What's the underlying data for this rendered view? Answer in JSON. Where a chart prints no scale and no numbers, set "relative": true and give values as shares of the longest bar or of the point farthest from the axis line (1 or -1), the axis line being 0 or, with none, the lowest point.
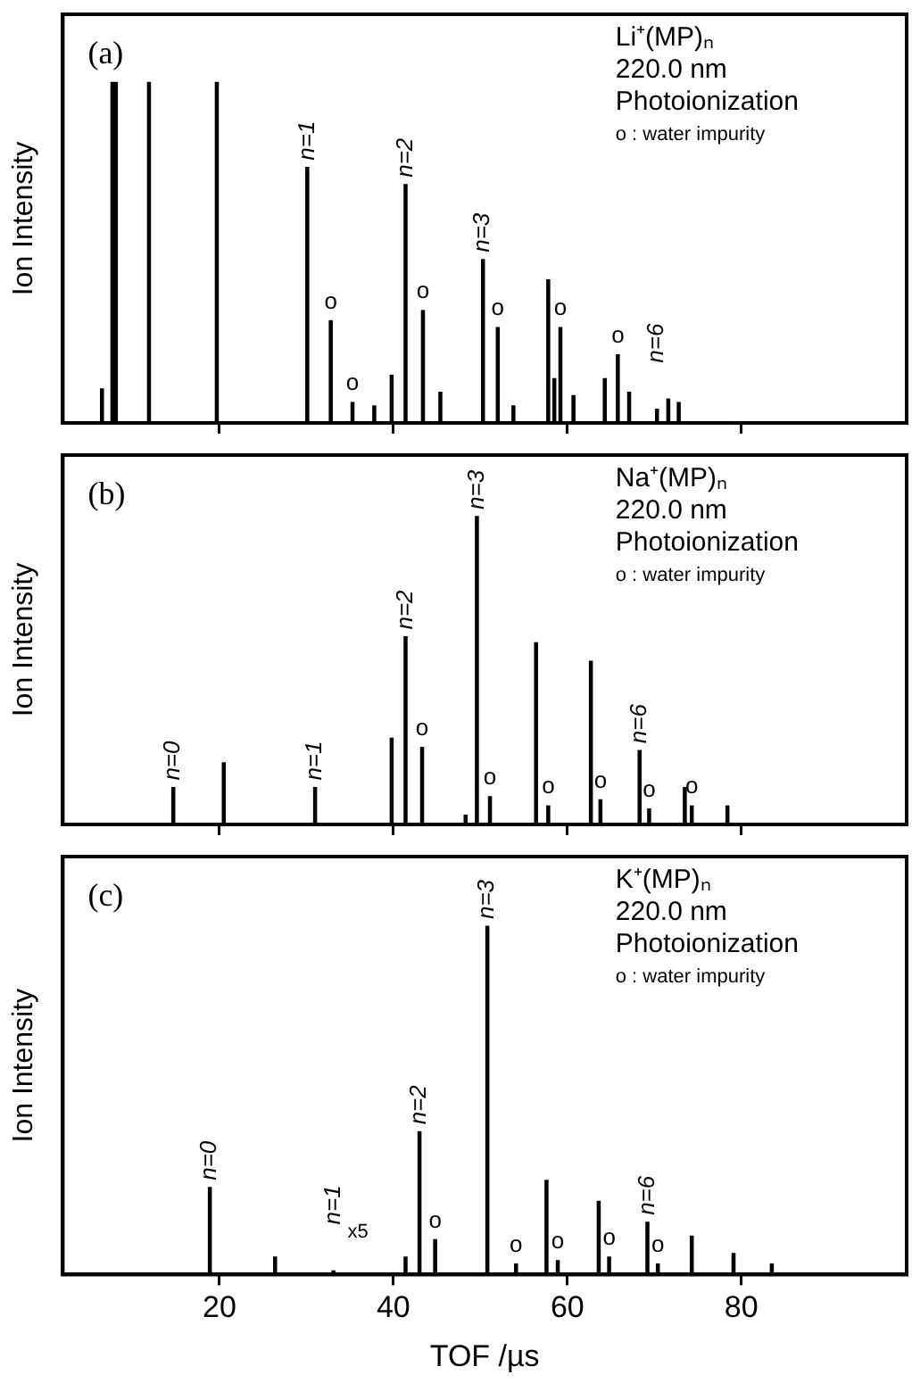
{
  "chart_data": [
    {
      "type": "bar",
      "relative": true,
      "color": "#000000",
      "ylabel": "Ion Intensity",
      "xlim": [
        2,
        99
      ],
      "xticks": [
        20,
        40,
        60,
        80
      ],
      "tick_labels": false,
      "legend": false,
      "grid": false,
      "x": [
        6.5,
        7.7,
        8.1,
        11.9,
        19.7,
        30.1,
        32.8,
        35.3,
        37.8,
        39.8,
        41.4,
        43.4,
        45.4,
        50.3,
        52.0,
        53.8,
        57.8,
        58.5,
        59.2,
        60.7,
        64.3,
        65.8,
        67.1,
        70.3,
        71.6,
        72.8
      ],
      "values": [
        0.1,
        1,
        1,
        1,
        1,
        0.75,
        0.3,
        0.06,
        0.05,
        0.14,
        0.7,
        0.33,
        0.09,
        0.48,
        0.28,
        0.05,
        0.42,
        0.13,
        0.28,
        0.08,
        0.13,
        0.2,
        0.09,
        0.04,
        0.07,
        0.06
      ],
      "annotations": [
        "(a)",
        "Li⁺(MP)ₙ",
        "220.0 nm",
        "Photoionization",
        "o : water impurity",
        {
          "text": "n=1",
          "x": 30.1,
          "y": 0.75
        },
        {
          "text": "n=2",
          "x": 41.4,
          "y": 0.7
        },
        {
          "text": "n=3",
          "x": 50.3,
          "y": 0.48
        },
        {
          "text": "n=6",
          "x": 70.3,
          "y": 0.04
        },
        {
          "text": "o",
          "x": 32.8,
          "y": 0.3
        },
        {
          "text": "o",
          "x": 35.3,
          "y": 0.06
        },
        {
          "text": "o",
          "x": 43.4,
          "y": 0.33
        },
        {
          "text": "o",
          "x": 52.0,
          "y": 0.28
        },
        {
          "text": "o",
          "x": 59.2,
          "y": 0.28
        },
        {
          "text": "o",
          "x": 65.8,
          "y": 0.2
        }
      ]
    },
    {
      "type": "bar",
      "relative": true,
      "color": "#000000",
      "ylabel": "Ion Intensity",
      "xlim": [
        2,
        99
      ],
      "xticks": [
        20,
        40,
        60,
        80
      ],
      "tick_labels": false,
      "legend": false,
      "grid": false,
      "x": [
        14.7,
        20.5,
        31.0,
        39.8,
        41.4,
        43.3,
        48.3,
        49.6,
        51.1,
        56.4,
        57.8,
        62.7,
        63.8,
        68.3,
        69.4,
        73.5,
        74.3,
        78.4
      ],
      "values": [
        0.12,
        0.2,
        0.12,
        0.28,
        0.61,
        0.25,
        0.03,
        1,
        0.09,
        0.59,
        0.06,
        0.53,
        0.08,
        0.24,
        0.05,
        0.12,
        0.06,
        0.06
      ],
      "annotations": [
        "(b)",
        "Na⁺(MP)ₙ",
        "220.0 nm",
        "Photoionization",
        "o : water impurity",
        {
          "text": "n=0",
          "x": 14.7,
          "y": 0.12
        },
        {
          "text": "n=1",
          "x": 31.0,
          "y": 0.12
        },
        {
          "text": "n=2",
          "x": 41.4,
          "y": 0.61
        },
        {
          "text": "n=3",
          "x": 49.6,
          "y": 1
        },
        {
          "text": "n=6",
          "x": 68.3,
          "y": 0.24
        },
        {
          "text": "o",
          "x": 43.3,
          "y": 0.25
        },
        {
          "text": "o",
          "x": 51.1,
          "y": 0.09
        },
        {
          "text": "o",
          "x": 57.8,
          "y": 0.06
        },
        {
          "text": "o",
          "x": 63.8,
          "y": 0.08
        },
        {
          "text": "o",
          "x": 69.4,
          "y": 0.05
        },
        {
          "text": "o",
          "x": 74.3,
          "y": 0.06
        }
      ]
    },
    {
      "type": "bar",
      "relative": true,
      "color": "#000000",
      "ylabel": "Ion Intensity",
      "xlabel": "TOF /µs",
      "xlim": [
        2,
        99
      ],
      "xticks": [
        20,
        40,
        60,
        80
      ],
      "tick_labels": "x",
      "legend": false,
      "grid": false,
      "x": [
        18.9,
        26.4,
        33.1,
        41.4,
        43.0,
        44.8,
        50.8,
        54.1,
        57.6,
        58.9,
        63.6,
        64.8,
        69.2,
        70.4,
        74.3,
        79.1,
        83.5
      ],
      "values": [
        0.25,
        0.05,
        0.01,
        0.05,
        0.41,
        0.1,
        1,
        0.03,
        0.27,
        0.04,
        0.21,
        0.05,
        0.15,
        0.03,
        0.11,
        0.06,
        0.03
      ],
      "annotations": [
        "(c)",
        "K⁺(MP)ₙ",
        "220.0 nm",
        "Photoionization",
        "o : water impurity",
        {
          "text": "n=0",
          "x": 18.9,
          "y": 0.25
        },
        {
          "text": "n=1",
          "x": 33.1,
          "y": 0.01
        },
        {
          "text": "x5",
          "x": 33.1,
          "y": 0.01
        },
        {
          "text": "n=2",
          "x": 43.0,
          "y": 0.41
        },
        {
          "text": "n=3",
          "x": 50.8,
          "y": 1
        },
        {
          "text": "n=6",
          "x": 69.2,
          "y": 0.15
        },
        {
          "text": "o",
          "x": 44.8,
          "y": 0.1
        },
        {
          "text": "o",
          "x": 54.1,
          "y": 0.03
        },
        {
          "text": "o",
          "x": 58.9,
          "y": 0.04
        },
        {
          "text": "o",
          "x": 64.8,
          "y": 0.05
        },
        {
          "text": "o",
          "x": 70.4,
          "y": 0.03
        }
      ]
    }
  ]
}
